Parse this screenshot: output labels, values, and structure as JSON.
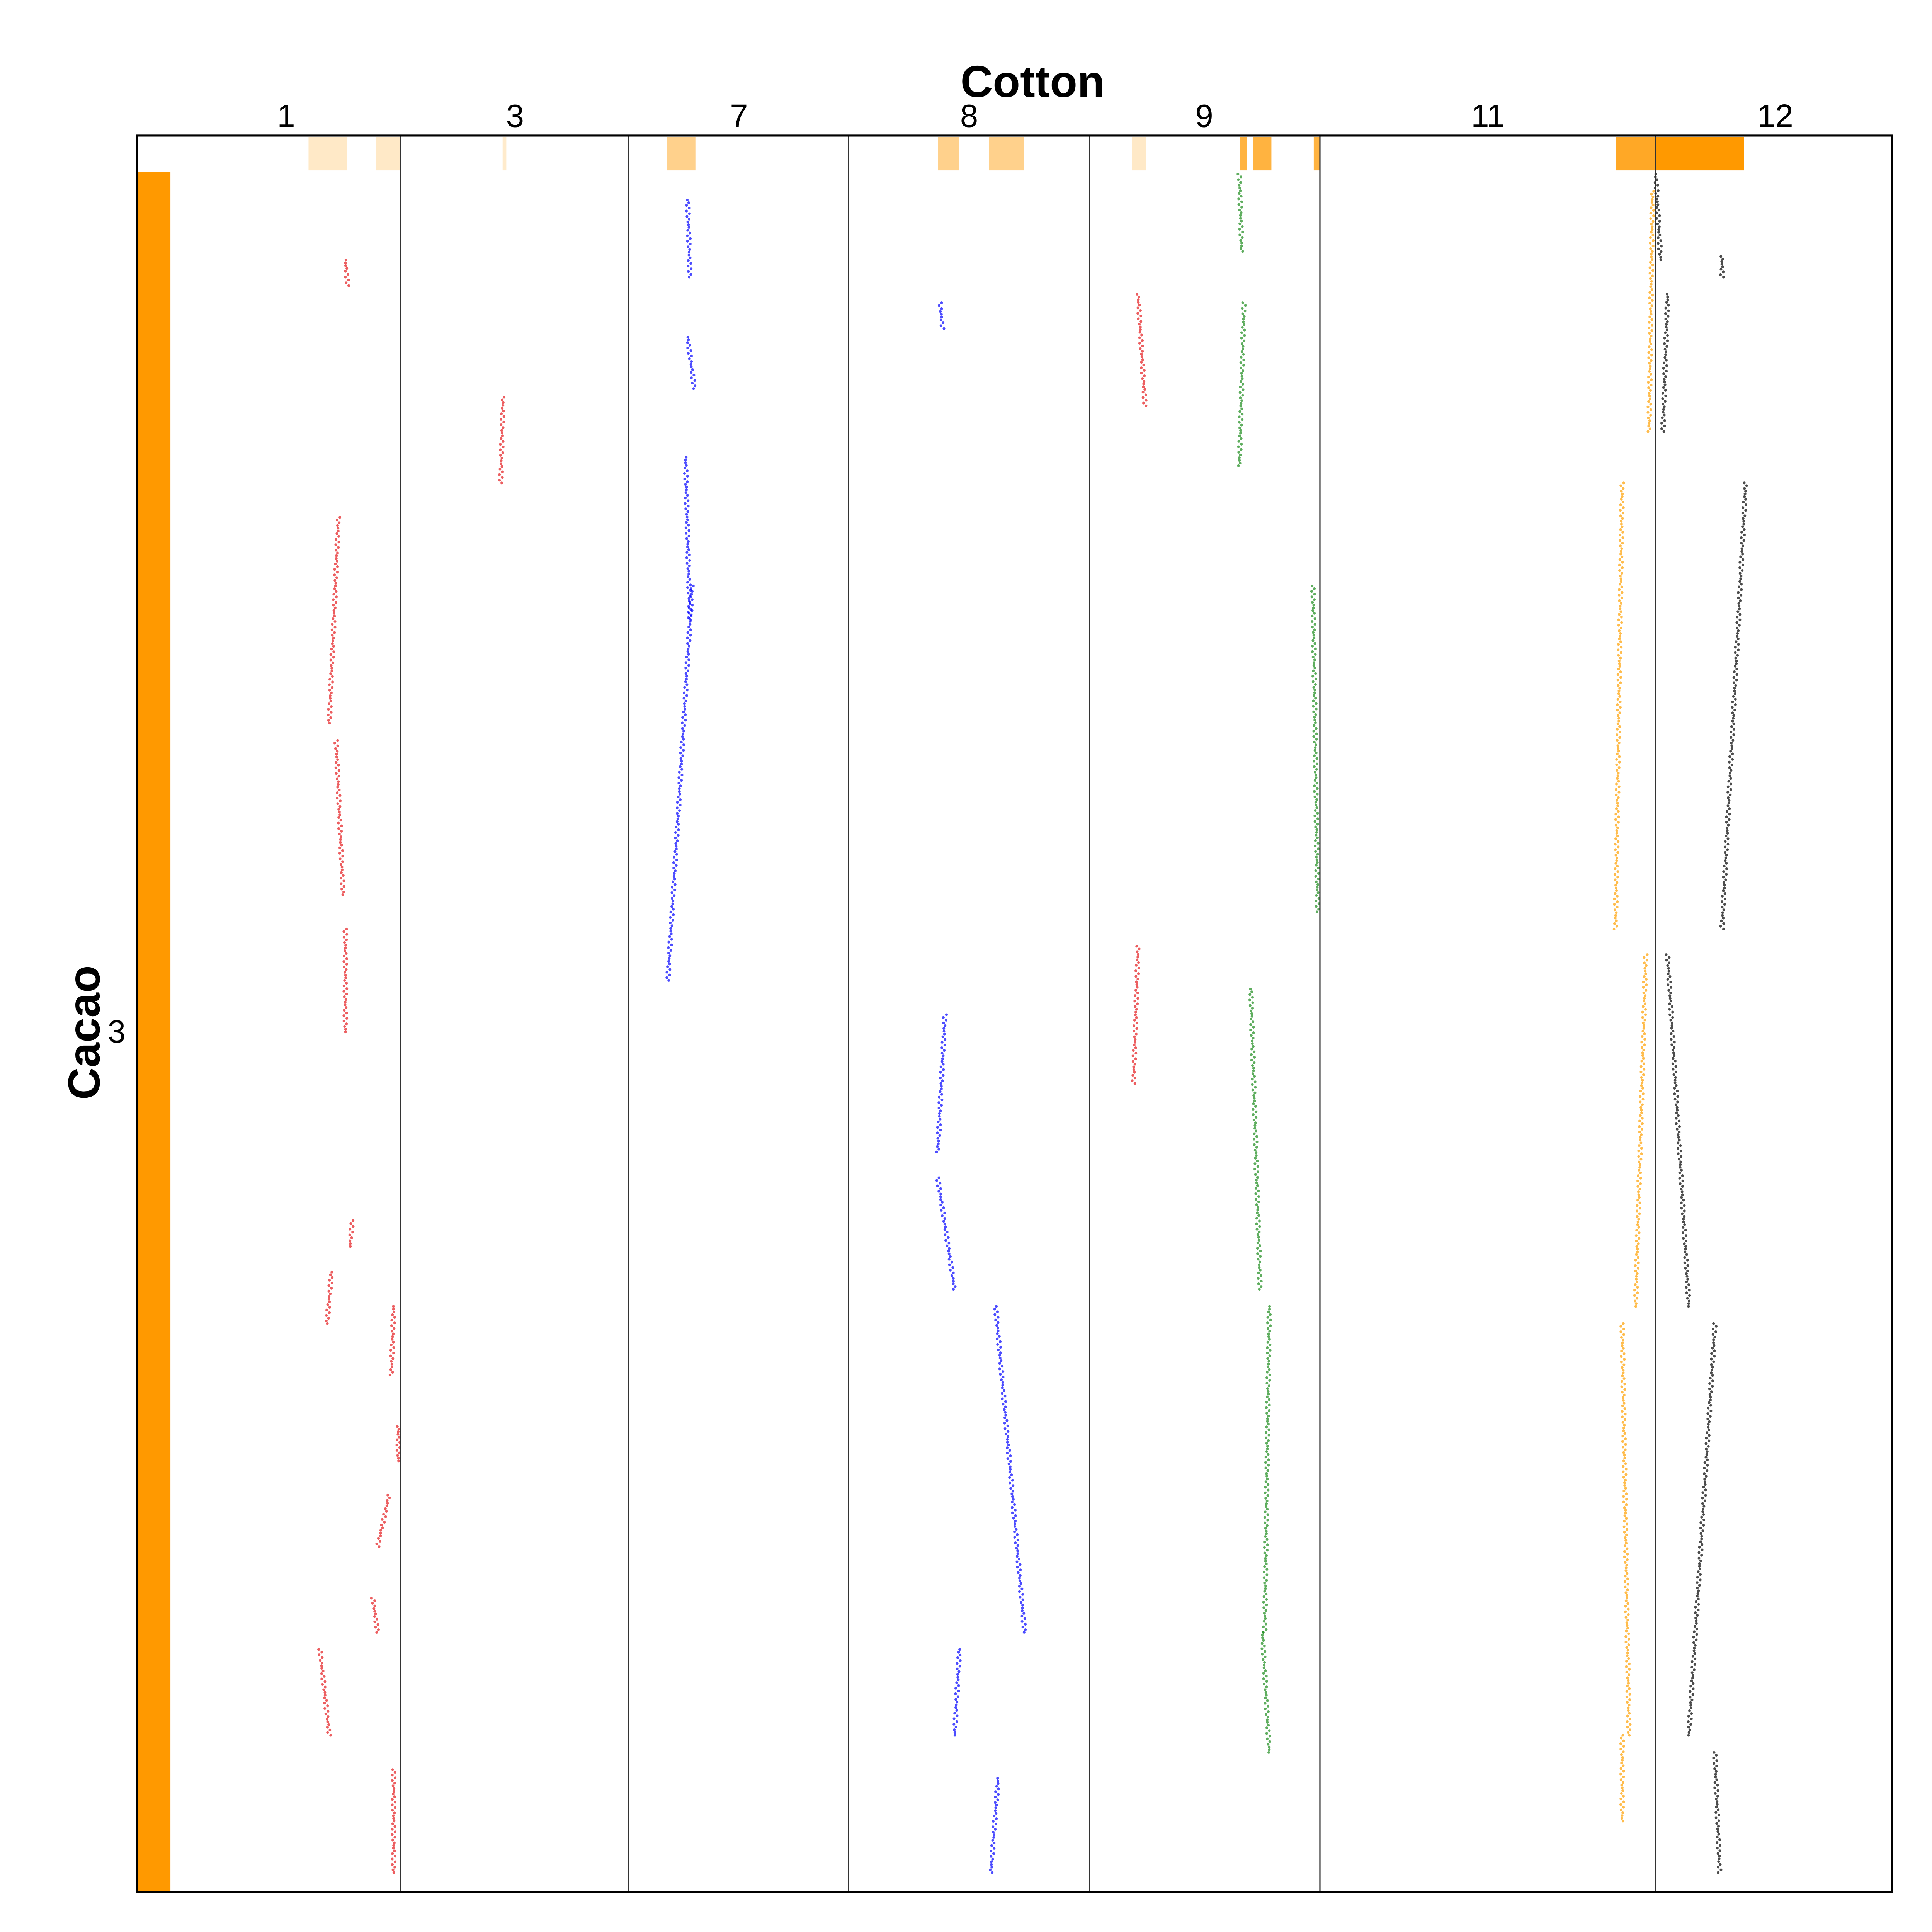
{
  "chart_data": {
    "type": "scatter",
    "title": "Cotton",
    "xlabel": "Cotton",
    "ylabel": "Cacao",
    "x_chromosomes": [
      "1",
      "3",
      "7",
      "8",
      "9",
      "11",
      "12"
    ],
    "y_chromosomes": [
      "3"
    ],
    "grid": true,
    "colors": {
      "chr1": "#e41a1c",
      "chr3": "#e41a1c",
      "chr7": "#0000ff",
      "chr8": "#0000ff",
      "chr9_red": "#e41a1c",
      "chr9_green": "#1a8a1a",
      "chr11": "#ff9f00",
      "chr12": "#000000",
      "track": "#ff9900"
    },
    "segments": [
      {
        "chromosome": "1",
        "color": "red",
        "points": [
          [
            0.76,
            0.05
          ],
          [
            0.77,
            0.065
          ]
        ]
      },
      {
        "chromosome": "3",
        "color": "red",
        "points": [
          [
            0.45,
            0.13
          ],
          [
            0.44,
            0.18
          ]
        ]
      },
      {
        "chromosome": "1",
        "color": "red",
        "points": [
          [
            0.73,
            0.2
          ],
          [
            0.69,
            0.32
          ]
        ]
      },
      {
        "chromosome": "1",
        "color": "red",
        "points": [
          [
            0.72,
            0.33
          ],
          [
            0.75,
            0.42
          ]
        ]
      },
      {
        "chromosome": "1",
        "color": "red",
        "points": [
          [
            0.76,
            0.44
          ],
          [
            0.76,
            0.5
          ]
        ]
      },
      {
        "chromosome": "1",
        "color": "red",
        "points": [
          [
            0.79,
            0.61
          ],
          [
            0.78,
            0.625
          ]
        ]
      },
      {
        "chromosome": "1",
        "color": "red",
        "points": [
          [
            0.7,
            0.64
          ],
          [
            0.68,
            0.67
          ]
        ]
      },
      {
        "chromosome": "1",
        "color": "red",
        "points": [
          [
            0.97,
            0.66
          ],
          [
            0.96,
            0.7
          ]
        ]
      },
      {
        "chromosome": "1",
        "color": "red",
        "points": [
          [
            0.99,
            0.73
          ],
          [
            0.99,
            0.75
          ]
        ]
      },
      {
        "chromosome": "1",
        "color": "red",
        "points": [
          [
            0.95,
            0.77
          ],
          [
            0.9,
            0.8
          ]
        ]
      },
      {
        "chromosome": "1",
        "color": "red",
        "points": [
          [
            0.88,
            0.83
          ],
          [
            0.9,
            0.85
          ]
        ]
      },
      {
        "chromosome": "1",
        "color": "red",
        "points": [
          [
            0.65,
            0.86
          ],
          [
            0.69,
            0.91
          ]
        ]
      },
      {
        "chromosome": "1",
        "color": "red",
        "points": [
          [
            0.97,
            0.93
          ],
          [
            0.97,
            0.99
          ]
        ]
      },
      {
        "chromosome": "7",
        "color": "blue",
        "points": [
          [
            0.27,
            0.015
          ],
          [
            0.28,
            0.06
          ]
        ]
      },
      {
        "chromosome": "7",
        "color": "blue",
        "points": [
          [
            0.27,
            0.095
          ],
          [
            0.3,
            0.125
          ]
        ]
      },
      {
        "chromosome": "7",
        "color": "blue",
        "points": [
          [
            0.26,
            0.165
          ],
          [
            0.28,
            0.26
          ]
        ]
      },
      {
        "chromosome": "7",
        "color": "blue",
        "points": [
          [
            0.29,
            0.24
          ],
          [
            0.18,
            0.47
          ]
        ]
      },
      {
        "chromosome": "8",
        "color": "blue",
        "points": [
          [
            0.38,
            0.075
          ],
          [
            0.39,
            0.09
          ]
        ]
      },
      {
        "chromosome": "8",
        "color": "blue",
        "points": [
          [
            0.4,
            0.49
          ],
          [
            0.37,
            0.57
          ]
        ]
      },
      {
        "chromosome": "8",
        "color": "blue",
        "points": [
          [
            0.37,
            0.585
          ],
          [
            0.44,
            0.65
          ]
        ]
      },
      {
        "chromosome": "8",
        "color": "blue",
        "points": [
          [
            0.61,
            0.66
          ],
          [
            0.73,
            0.85
          ]
        ]
      },
      {
        "chromosome": "8",
        "color": "blue",
        "points": [
          [
            0.46,
            0.86
          ],
          [
            0.44,
            0.91
          ]
        ]
      },
      {
        "chromosome": "8",
        "color": "blue",
        "points": [
          [
            0.62,
            0.935
          ],
          [
            0.59,
            0.99
          ]
        ]
      },
      {
        "chromosome": "9",
        "color": "red",
        "points": [
          [
            0.21,
            0.07
          ],
          [
            0.24,
            0.135
          ]
        ]
      },
      {
        "chromosome": "9",
        "color": "red",
        "points": [
          [
            0.21,
            0.45
          ],
          [
            0.19,
            0.53
          ]
        ]
      },
      {
        "chromosome": "9",
        "color": "green",
        "points": [
          [
            0.65,
            0.0
          ],
          [
            0.66,
            0.045
          ]
        ]
      },
      {
        "chromosome": "9",
        "color": "green",
        "points": [
          [
            0.67,
            0.075
          ],
          [
            0.65,
            0.17
          ]
        ]
      },
      {
        "chromosome": "9",
        "color": "green",
        "points": [
          [
            0.97,
            0.24
          ],
          [
            0.99,
            0.43
          ]
        ]
      },
      {
        "chromosome": "9",
        "color": "green",
        "points": [
          [
            0.7,
            0.475
          ],
          [
            0.74,
            0.65
          ]
        ]
      },
      {
        "chromosome": "9",
        "color": "green",
        "points": [
          [
            0.78,
            0.66
          ],
          [
            0.76,
            0.85
          ]
        ]
      },
      {
        "chromosome": "9",
        "color": "green",
        "points": [
          [
            0.75,
            0.85
          ],
          [
            0.78,
            0.92
          ]
        ]
      },
      {
        "chromosome": "11",
        "color": "orange",
        "points": [
          [
            0.99,
            0.01
          ],
          [
            0.98,
            0.15
          ]
        ]
      },
      {
        "chromosome": "11",
        "color": "orange",
        "points": [
          [
            0.9,
            0.18
          ],
          [
            0.88,
            0.44
          ]
        ]
      },
      {
        "chromosome": "11",
        "color": "orange",
        "points": [
          [
            0.97,
            0.455
          ],
          [
            0.94,
            0.66
          ]
        ]
      },
      {
        "chromosome": "11",
        "color": "orange",
        "points": [
          [
            0.9,
            0.67
          ],
          [
            0.92,
            0.91
          ]
        ]
      },
      {
        "chromosome": "11",
        "color": "orange",
        "points": [
          [
            0.9,
            0.91
          ],
          [
            0.9,
            0.96
          ]
        ]
      },
      {
        "chromosome": "12",
        "color": "black",
        "points": [
          [
            0.0,
            0.0
          ],
          [
            0.02,
            0.05
          ]
        ]
      },
      {
        "chromosome": "12",
        "color": "black",
        "points": [
          [
            0.05,
            0.07
          ],
          [
            0.03,
            0.15
          ]
        ]
      },
      {
        "chromosome": "12",
        "color": "black",
        "points": [
          [
            0.28,
            0.048
          ],
          [
            0.28,
            0.06
          ]
        ]
      },
      {
        "chromosome": "12",
        "color": "black",
        "points": [
          [
            0.38,
            0.18
          ],
          [
            0.28,
            0.44
          ]
        ]
      },
      {
        "chromosome": "12",
        "color": "black",
        "points": [
          [
            0.05,
            0.455
          ],
          [
            0.14,
            0.66
          ]
        ]
      },
      {
        "chromosome": "12",
        "color": "black",
        "points": [
          [
            0.25,
            0.67
          ],
          [
            0.14,
            0.91
          ]
        ]
      },
      {
        "chromosome": "12",
        "color": "black",
        "points": [
          [
            0.25,
            0.92
          ],
          [
            0.27,
            0.99
          ]
        ]
      }
    ]
  }
}
